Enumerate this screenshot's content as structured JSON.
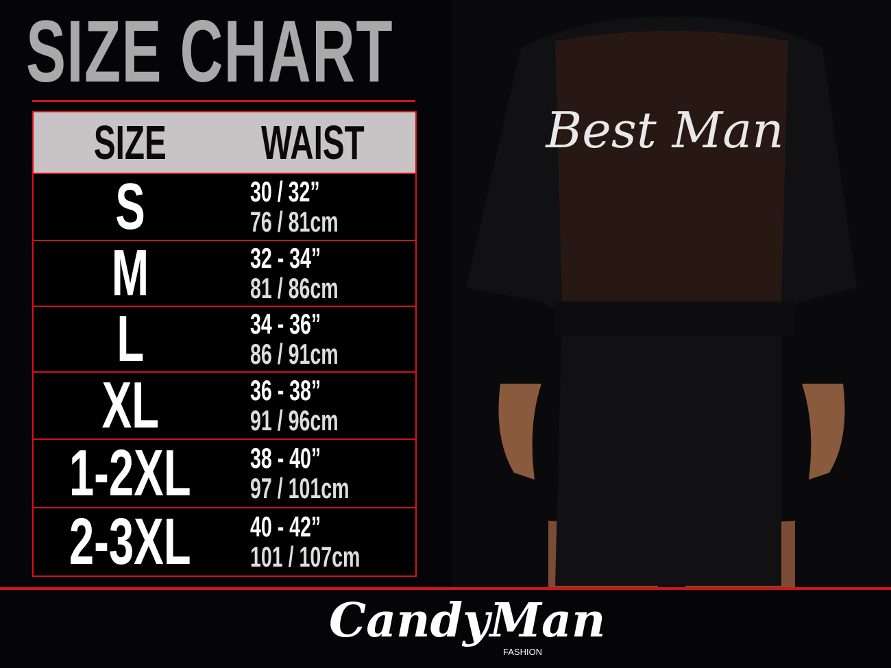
{
  "title": "SIZE CHART",
  "table": {
    "headers": [
      "SIZE",
      "WAIST"
    ],
    "rows": [
      {
        "size": "S",
        "inches": "30 / 32”",
        "cm": "76 / 81cm"
      },
      {
        "size": "M",
        "inches": "32 - 34”",
        "cm": "81 / 86cm"
      },
      {
        "size": "L",
        "inches": "34 - 36”",
        "cm": "86 / 91cm"
      },
      {
        "size": "XL",
        "inches": "36 - 38”",
        "cm": "91 / 96cm"
      },
      {
        "size": "1-2XL",
        "inches": "38 - 40”",
        "cm": "97 / 101cm"
      },
      {
        "size": "2-3XL",
        "inches": "40 - 42”",
        "cm": "101 / 107cm"
      }
    ]
  },
  "product_print": "Best Man",
  "logo": {
    "name": "CandyMan",
    "sub": "FASHION"
  },
  "colors": {
    "accent": "#d0141a",
    "header_bg": "#c8c4c6",
    "title": "#a9a9a9",
    "background": "#050508"
  }
}
